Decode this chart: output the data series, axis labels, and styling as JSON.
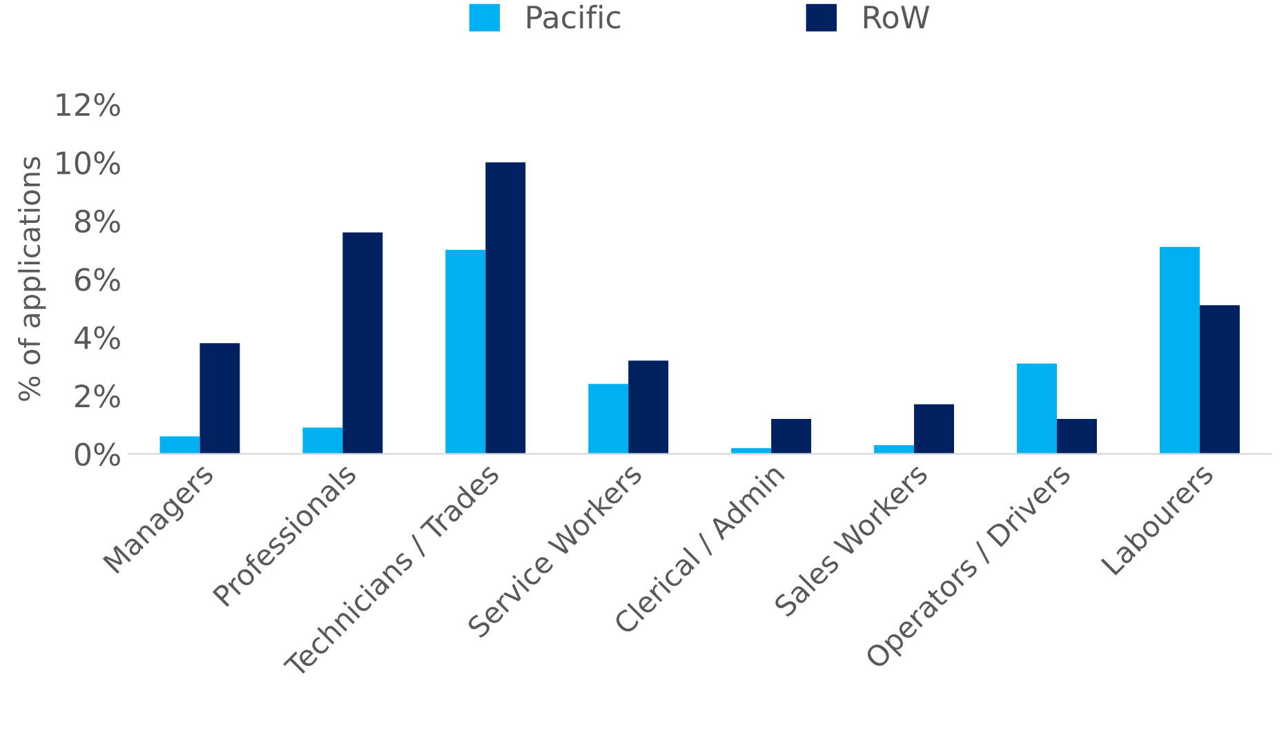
{
  "chart_data": {
    "type": "bar",
    "ylabel": "% of applications",
    "categories": [
      "Managers",
      "Professionals",
      "Technicians / Trades",
      "Service Workers",
      "Clerical / Admin",
      "Sales Workers",
      "Operators / Drivers",
      "Labourers"
    ],
    "series": [
      {
        "name": "Pacific",
        "color": "#00b0f0",
        "values": [
          0.6,
          0.9,
          7.0,
          2.4,
          0.2,
          0.3,
          3.1,
          7.1
        ]
      },
      {
        "name": "RoW",
        "color": "#002060",
        "values": [
          3.8,
          7.6,
          10.0,
          3.2,
          1.2,
          1.7,
          1.2,
          5.1
        ]
      }
    ],
    "ylim": [
      0,
      12
    ],
    "yticks": [
      {
        "value": 0,
        "label": "0%"
      },
      {
        "value": 2,
        "label": "2%"
      },
      {
        "value": 4,
        "label": "4%"
      },
      {
        "value": 6,
        "label": "6%"
      },
      {
        "value": 8,
        "label": "8%"
      },
      {
        "value": 10,
        "label": "10%"
      },
      {
        "value": 12,
        "label": "12%"
      }
    ],
    "grid": false,
    "legend": "top"
  }
}
